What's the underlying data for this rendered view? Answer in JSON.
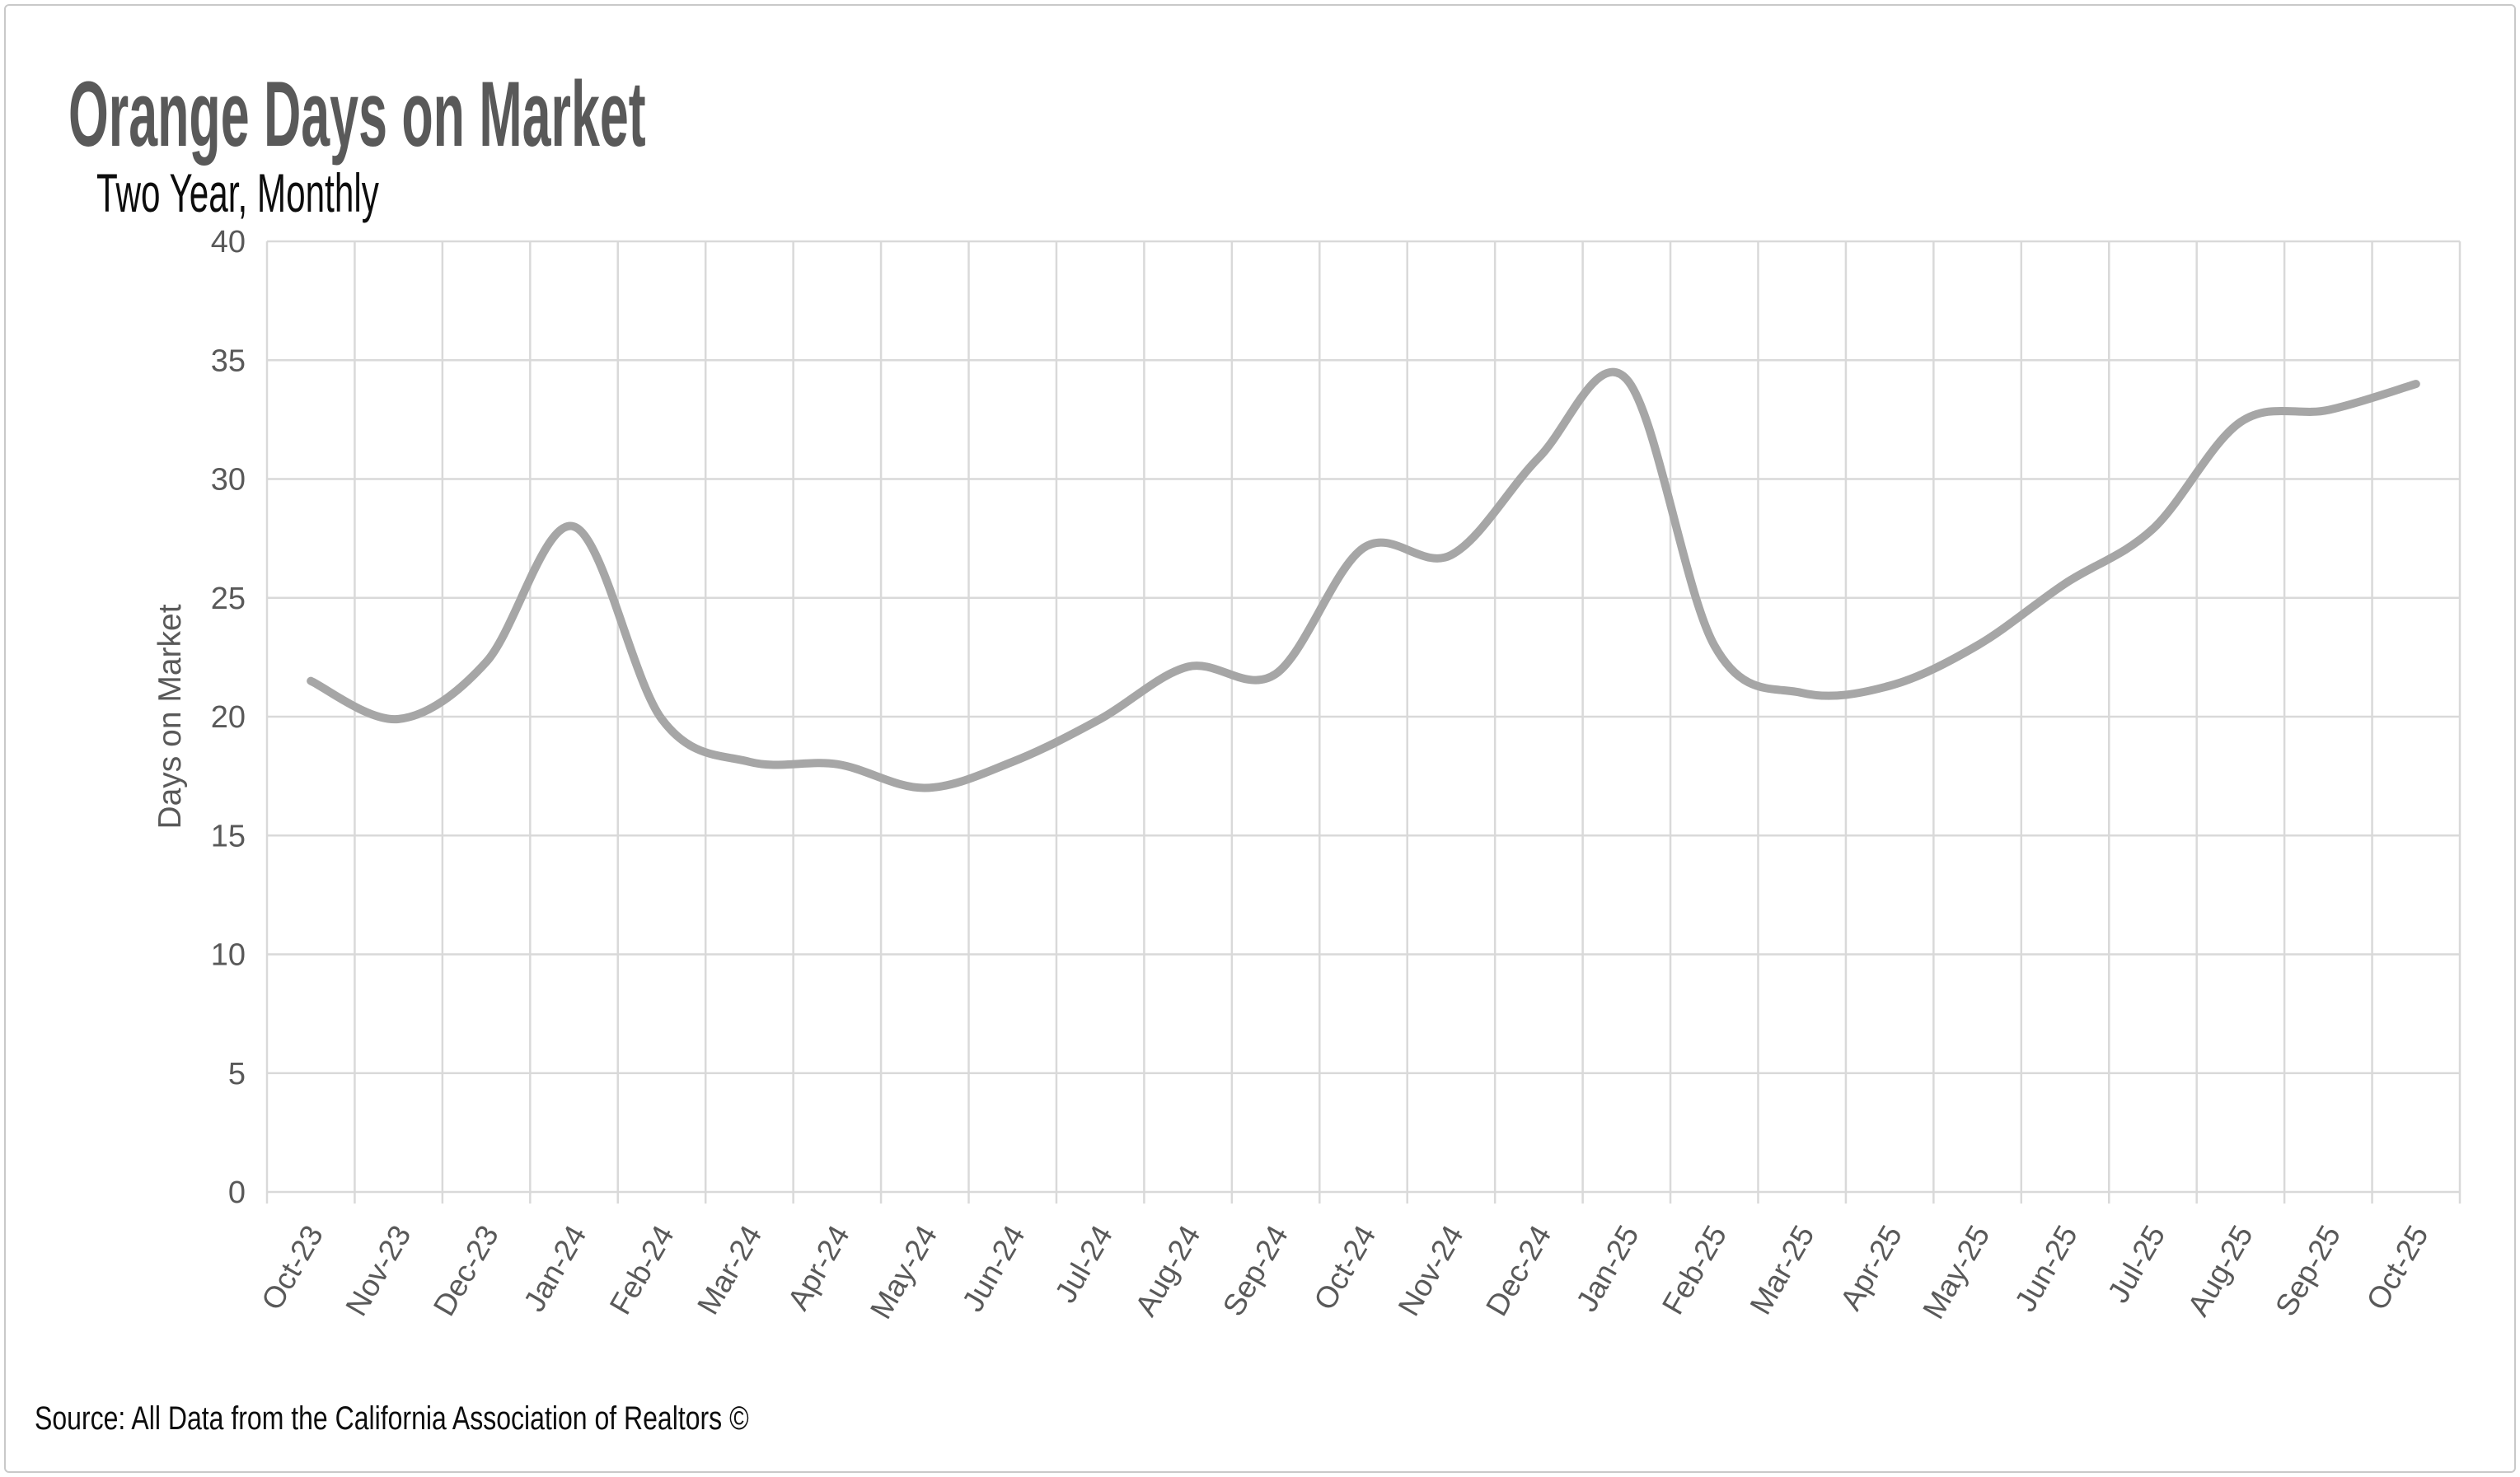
{
  "chart_data": {
    "type": "line",
    "smooth": true,
    "title": "Orange Days on Market",
    "subtitle": "Two Year, Monthly",
    "ylabel": "Days on Market",
    "xlabel": "",
    "ylim": [
      0,
      40
    ],
    "y_tick_interval": 5,
    "y_ticks": [
      "0",
      "5",
      "10",
      "15",
      "20",
      "25",
      "30",
      "35",
      "40"
    ],
    "categories": [
      "Oct-23",
      "Nov-23",
      "Dec-23",
      "Jan-24",
      "Feb-24",
      "Mar-24",
      "Apr-24",
      "May-24",
      "Jun-24",
      "Jul-24",
      "Aug-24",
      "Sep-24",
      "Oct-24",
      "Nov-24",
      "Dec-24",
      "Jan-25",
      "Feb-25",
      "Mar-25",
      "Apr-25",
      "May-25",
      "Jun-25",
      "Jul-25",
      "Aug-25",
      "Sep-25",
      "Oct-25"
    ],
    "values": [
      21.5,
      19.9,
      22.3,
      28.0,
      19.9,
      18.1,
      18.0,
      17.0,
      18.1,
      19.9,
      22.1,
      21.8,
      27.1,
      26.8,
      30.9,
      34.2,
      23.0,
      21.0,
      21.3,
      23.0,
      25.6,
      27.9,
      32.4,
      32.9,
      34.0
    ],
    "legend": false,
    "grid": true,
    "line_color": "#A6A6A6",
    "grid_color": "#D9D9D9",
    "axis_label_color": "#595959"
  },
  "footer": {
    "source": "Source: All Data from the California Association of Realtors ©"
  }
}
